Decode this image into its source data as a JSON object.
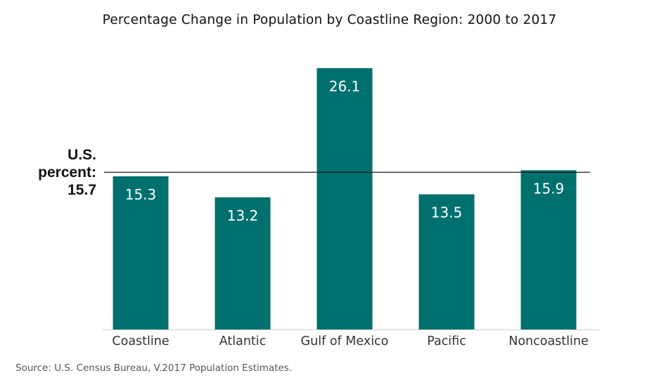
{
  "chart_data": {
    "type": "bar",
    "title": "Percentage Change in Population by Coastline Region: 2000 to 2017",
    "categories": [
      "Coastline",
      "Atlantic",
      "Gulf of Mexico",
      "Pacific",
      "Noncoastline"
    ],
    "values": [
      15.3,
      13.2,
      26.1,
      13.5,
      15.9
    ],
    "data_labels": [
      "15.3",
      "13.2",
      "26.1",
      "13.5",
      "15.9"
    ],
    "xlabel": "",
    "ylabel": "",
    "ylim": [
      0,
      26.1
    ],
    "grid": false,
    "reference_line": {
      "value": 15.7,
      "label_lines": [
        "U.S.",
        "percent:",
        "15.7"
      ]
    },
    "bar_color": "#00706f"
  },
  "source": "Source: U.S. Census Bureau, V.2017 Population Estimates."
}
